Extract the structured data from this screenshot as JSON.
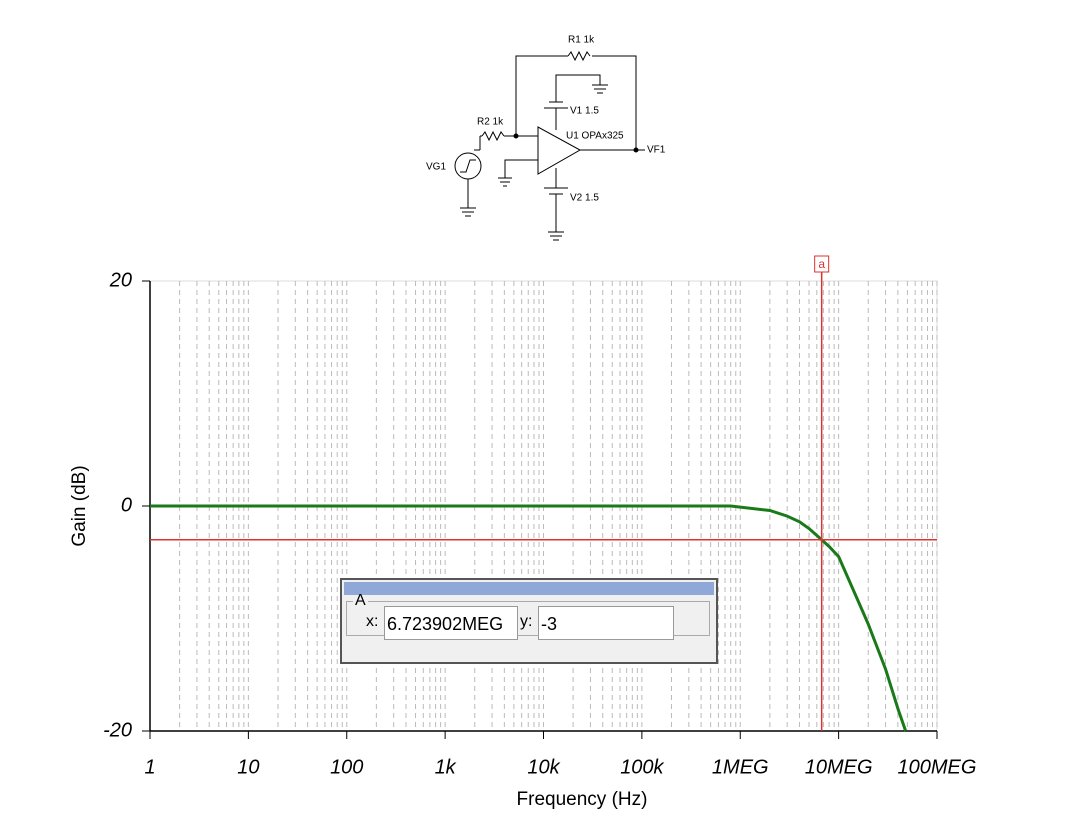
{
  "schematic": {
    "r1": "R1 1k",
    "v1": "V1 1.5",
    "r2": "R2 1k",
    "u1": "U1 OPAx325",
    "vf1": "VF1",
    "vg1": "VG1",
    "v2": "V2 1.5"
  },
  "chart_data": {
    "type": "line",
    "x_label": "Frequency (Hz)",
    "y_label": "Gain (dB)",
    "log_x": true,
    "grid": true,
    "xlim": [
      1,
      100000000
    ],
    "ylim": [
      -20,
      20
    ],
    "xticks": [
      1,
      10,
      100,
      {
        "value": 1000,
        "label": "1k"
      },
      {
        "value": 10000,
        "label": "10k"
      },
      {
        "value": 100000,
        "label": "100k"
      },
      {
        "value": 1000000,
        "label": "1MEG"
      },
      {
        "value": 10000000,
        "label": "10MEG"
      },
      {
        "value": 100000000,
        "label": "100MEG"
      }
    ],
    "yticks": [
      -20,
      0,
      20
    ],
    "series": [
      {
        "name": "VF1",
        "color": "#1a7a1a",
        "x": [
          1,
          10,
          100,
          1000,
          10000,
          100000,
          500000,
          800000,
          1000000,
          2000000,
          3000000,
          4000000,
          5000000,
          6723902,
          8000000,
          10000000,
          15000000,
          20000000,
          30000000,
          40000000,
          48000000
        ],
        "values": [
          0,
          0,
          0,
          0,
          0,
          0,
          0,
          0,
          -0.1,
          -0.4,
          -0.9,
          -1.4,
          -2,
          -3,
          -3.6,
          -4.5,
          -8,
          -10.5,
          -14.5,
          -18,
          -20
        ]
      }
    ],
    "cursor": {
      "label": "a",
      "x": 6723902,
      "y": -3,
      "color": "#e03030"
    }
  },
  "cursor_dialog": {
    "group": "A",
    "x_label": "x:",
    "x_value": "6.723902MEG",
    "y_label": "y:",
    "y_value": "-3"
  }
}
